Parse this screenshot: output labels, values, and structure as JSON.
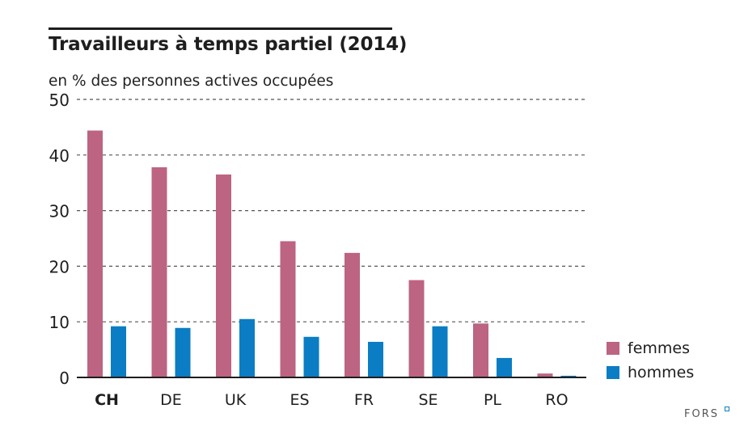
{
  "chart_data": {
    "type": "bar",
    "title": "Travailleurs à temps partiel (2014)",
    "subtitle": "en % des personnes actives occupées",
    "xlabel": "",
    "ylabel": "en % des personnes actives occupées",
    "categories": [
      "CH",
      "DE",
      "UK",
      "ES",
      "FR",
      "SE",
      "PL",
      "RO"
    ],
    "highlight_category": "CH",
    "series": [
      {
        "name": "femmes",
        "color": "#bc6481",
        "values": [
          44.4,
          37.8,
          36.5,
          24.5,
          22.4,
          17.5,
          9.7,
          0.7
        ]
      },
      {
        "name": "hommes",
        "color": "#0a7dc4",
        "values": [
          9.2,
          8.9,
          10.5,
          7.3,
          6.4,
          9.2,
          3.5,
          0.3
        ]
      }
    ],
    "ylim": [
      0,
      50
    ],
    "yticks": [
      0,
      10,
      20,
      30,
      40,
      50
    ],
    "grid": true,
    "legend_position": "bottom-right"
  },
  "branding": {
    "logo_text": "FORS"
  }
}
